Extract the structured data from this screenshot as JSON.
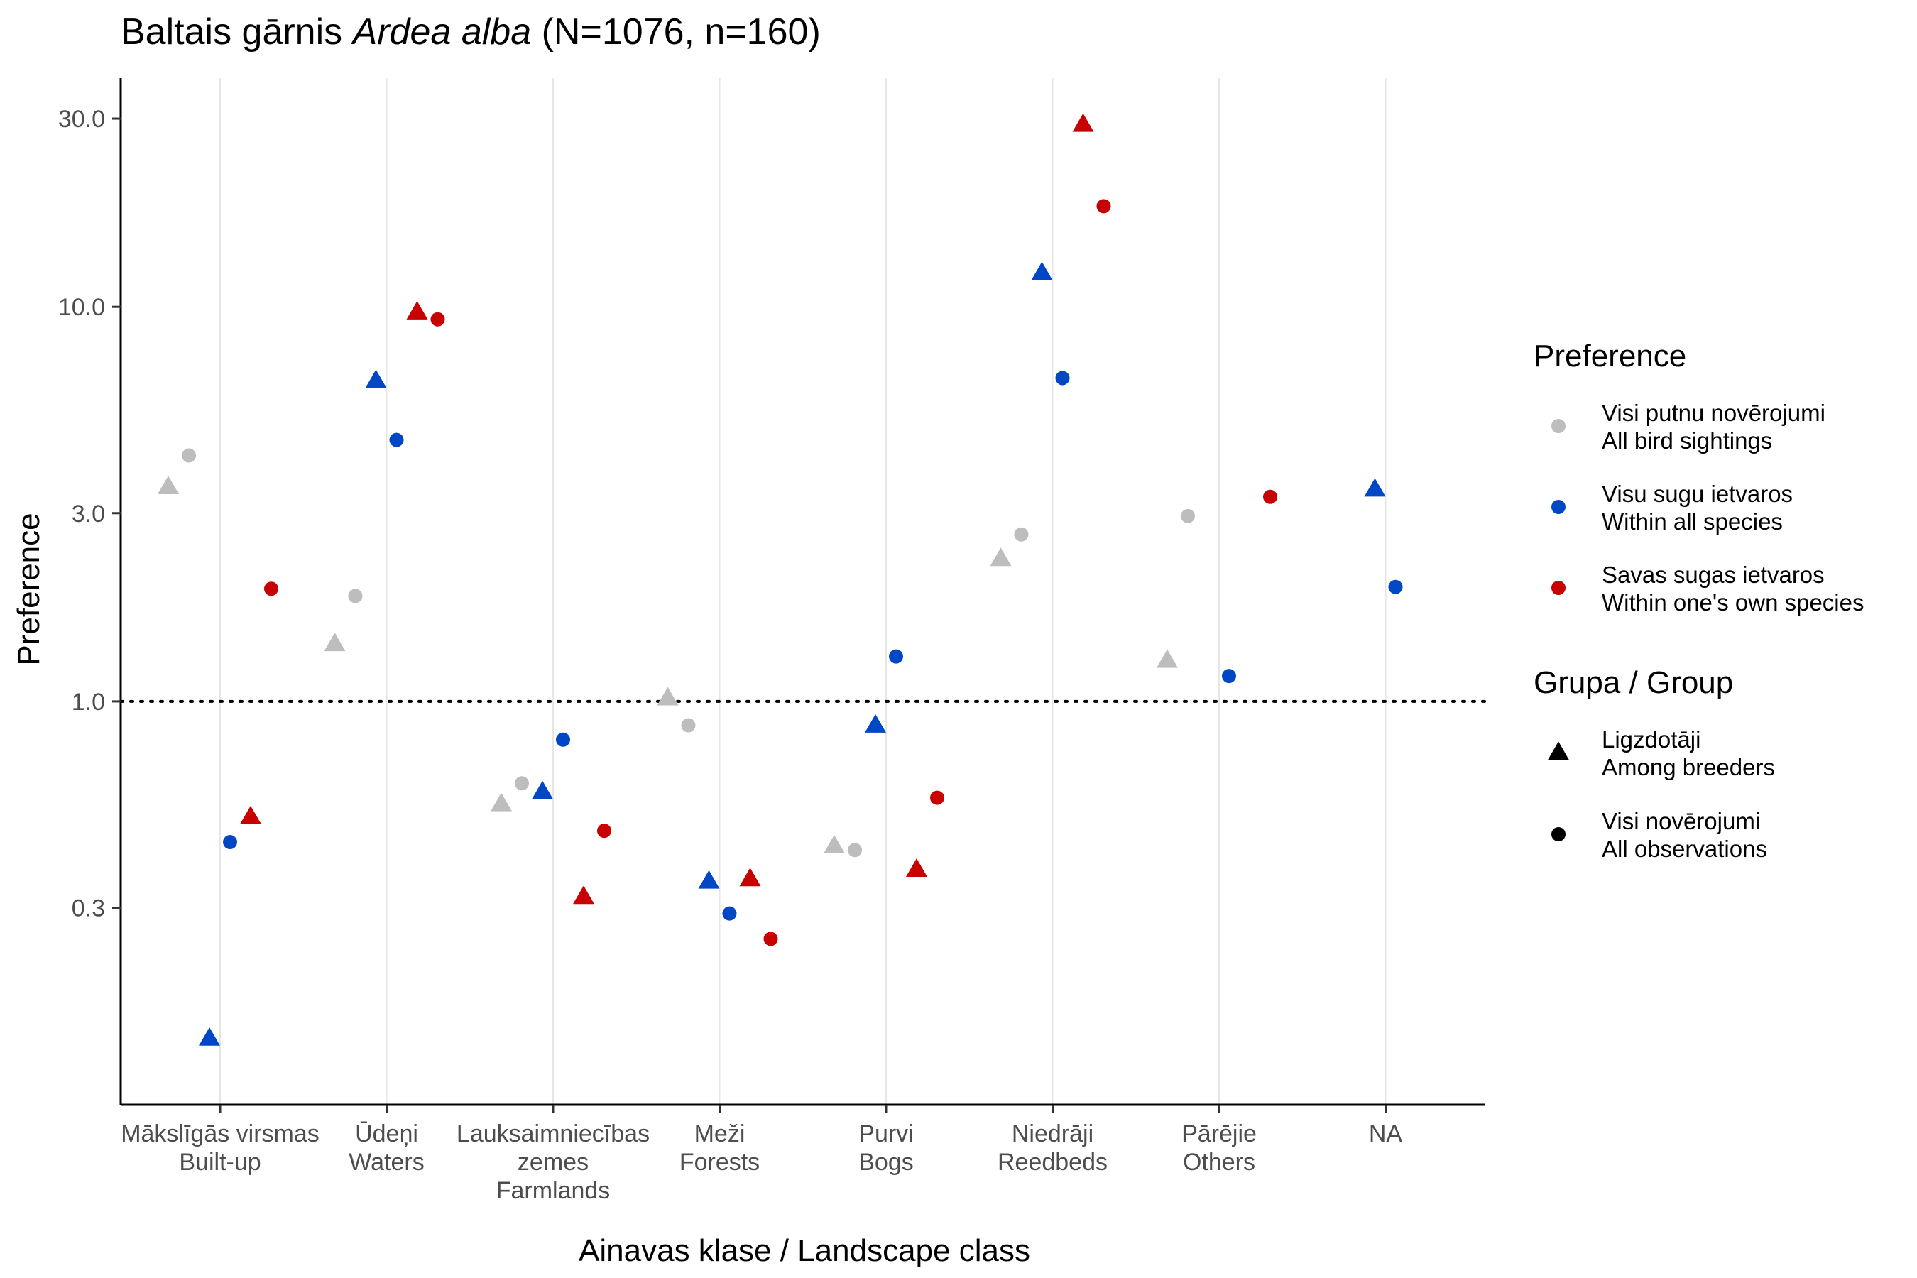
{
  "chart_data": {
    "type": "scatter",
    "title": {
      "prefix": "Baltais gārnis ",
      "species_italic": "Ardea alba",
      "suffix": " (N=1076, n=160)"
    },
    "xlabel": "Ainavas klase / Landscape class",
    "ylabel": "Preference",
    "y_scale": "log",
    "ylim": [
      0.095,
      38
    ],
    "y_ticks": [
      {
        "value": 0.3,
        "label": "0.3"
      },
      {
        "value": 1.0,
        "label": "1.0"
      },
      {
        "value": 3.0,
        "label": "3.0"
      },
      {
        "value": 10.0,
        "label": "10.0"
      },
      {
        "value": 30.0,
        "label": "30.0"
      }
    ],
    "reference_line": {
      "value": 1.0,
      "style": "dotted"
    },
    "grid": {
      "vertical_major": true,
      "horizontal": false
    },
    "categories": [
      {
        "lines": [
          "Mākslīgās virsmas",
          "Built-up"
        ]
      },
      {
        "lines": [
          "Ūdeņi",
          "Waters"
        ]
      },
      {
        "lines": [
          "Lauksaimniecības",
          "zemes",
          "Farmlands"
        ]
      },
      {
        "lines": [
          "Meži",
          "Forests"
        ]
      },
      {
        "lines": [
          "Purvi",
          "Bogs"
        ]
      },
      {
        "lines": [
          "Niedrāji",
          "Reedbeds"
        ]
      },
      {
        "lines": [
          "Pārējie",
          "Others"
        ]
      },
      {
        "lines": [
          "NA"
        ]
      }
    ],
    "colors": {
      "all_sightings": "#bdbdbd",
      "all_species": "#0047c6",
      "own_species": "#c80000"
    },
    "series": [
      {
        "preference": "all_sightings",
        "group": "breeders",
        "values": [
          3.5,
          1.4,
          0.55,
          1.02,
          0.43,
          2.3,
          1.27,
          null
        ]
      },
      {
        "preference": "all_sightings",
        "group": "all_obs",
        "values": [
          4.2,
          1.85,
          0.62,
          0.87,
          0.42,
          2.65,
          2.95,
          null
        ]
      },
      {
        "preference": "all_species",
        "group": "breeders",
        "values": [
          0.14,
          6.5,
          0.59,
          0.35,
          0.87,
          12.2,
          null,
          3.45
        ]
      },
      {
        "preference": "all_species",
        "group": "all_obs",
        "values": [
          0.44,
          4.6,
          0.8,
          0.29,
          1.3,
          6.6,
          1.16,
          1.95
        ]
      },
      {
        "preference": "own_species",
        "group": "breeders",
        "values": [
          0.51,
          9.7,
          0.32,
          0.355,
          0.375,
          29,
          null,
          null
        ]
      },
      {
        "preference": "own_species",
        "group": "all_obs",
        "values": [
          1.93,
          9.3,
          0.47,
          0.25,
          0.57,
          18,
          3.3,
          null
        ]
      }
    ],
    "legend": {
      "position": "right",
      "preference_title": "Preference",
      "preference_items": [
        {
          "key": "all_sightings",
          "lines": [
            "Visi putnu novērojumi",
            "All bird sightings"
          ]
        },
        {
          "key": "all_species",
          "lines": [
            "Visu sugu ietvaros",
            "Within all species"
          ]
        },
        {
          "key": "own_species",
          "lines": [
            "Savas sugas ietvaros",
            "Within one's own species"
          ]
        }
      ],
      "group_title": "Grupa / Group",
      "group_items": [
        {
          "key": "breeders",
          "shape": "triangle",
          "lines": [
            "Ligzdotāji",
            "Among breeders"
          ]
        },
        {
          "key": "all_obs",
          "shape": "circle",
          "lines": [
            "Visi novērojumi",
            "All observations"
          ]
        }
      ]
    }
  }
}
